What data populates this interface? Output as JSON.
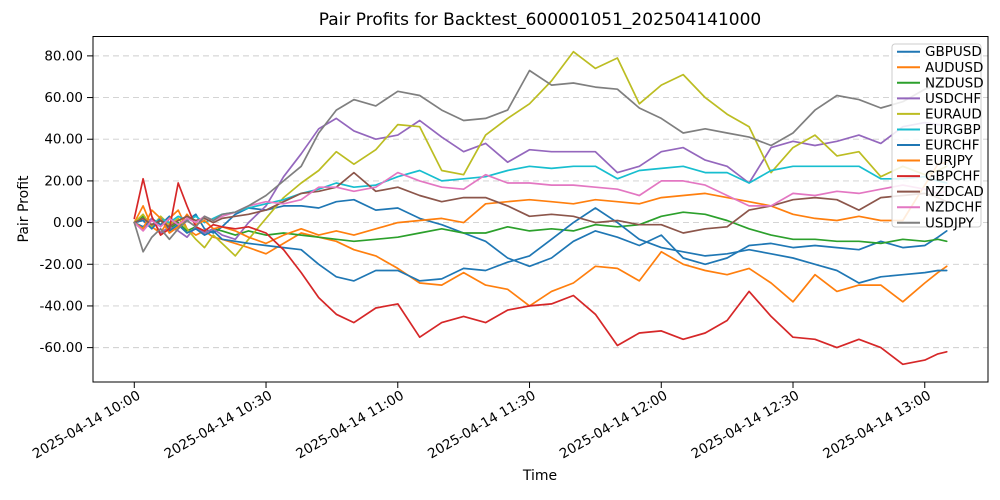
{
  "chart_data": {
    "type": "line",
    "title": "Pair Profits for Backtest_600001051_202504141000",
    "xlabel": "Time",
    "ylabel": "Pair Profit",
    "grid": "horizontal-dashed",
    "legend_position": "upper right",
    "x_unit": "minutes after 2025-04-14 10:00",
    "xlim_minutes": [
      -9.4,
      194.4
    ],
    "ylim": [
      -76.5,
      89.3
    ],
    "x": [
      0,
      2,
      4,
      6,
      8,
      10,
      12,
      14,
      16,
      18,
      20,
      23,
      26,
      30,
      34,
      38,
      42,
      46,
      50,
      55,
      60,
      65,
      70,
      75,
      80,
      85,
      90,
      95,
      100,
      105,
      110,
      115,
      120,
      125,
      130,
      135,
      140,
      145,
      150,
      155,
      160,
      165,
      170,
      175,
      180,
      183,
      185
    ],
    "x_ticks": [
      {
        "t": 0,
        "label": "2025-04-14 10:00"
      },
      {
        "t": 30,
        "label": "2025-04-14 10:30"
      },
      {
        "t": 60,
        "label": "2025-04-14 11:00"
      },
      {
        "t": 90,
        "label": "2025-04-14 11:30"
      },
      {
        "t": 120,
        "label": "2025-04-14 12:00"
      },
      {
        "t": 150,
        "label": "2025-04-14 12:30"
      },
      {
        "t": 180,
        "label": "2025-04-14 13:00"
      }
    ],
    "y_ticks": [
      {
        "v": 80,
        "label": "80.00"
      },
      {
        "v": 60,
        "label": "60.00"
      },
      {
        "v": 40,
        "label": "40.00"
      },
      {
        "v": 20,
        "label": "20.00"
      },
      {
        "v": 0,
        "label": "0.00"
      },
      {
        "v": -20,
        "label": "-20.00"
      },
      {
        "v": -40,
        "label": "-40.00"
      },
      {
        "v": -60,
        "label": "-60.00"
      }
    ],
    "series": [
      {
        "name": "GBPUSD",
        "color": "#1f77b4",
        "values": [
          0,
          -2,
          2,
          -1,
          3,
          -2,
          1,
          4,
          -3,
          -5,
          -2,
          4,
          7,
          6,
          8,
          8,
          7,
          10,
          11,
          6,
          7,
          2,
          -1,
          -5,
          -9,
          -17,
          -21,
          -17,
          -9,
          -4,
          -7,
          -11,
          -6,
          -17,
          -20,
          -17,
          -11,
          -10,
          -12,
          -11,
          -12,
          -13,
          -9,
          -12,
          -11,
          -7,
          -4
        ]
      },
      {
        "name": "AUDUSD",
        "color": "#ff7f0e",
        "values": [
          0,
          8,
          -2,
          -5,
          2,
          6,
          -3,
          -6,
          -4,
          -7,
          -8,
          -10,
          -12,
          -15,
          -10,
          -5,
          -7,
          -9,
          -13,
          -16,
          -22,
          -29,
          -30,
          -24,
          -30,
          -32,
          -40,
          -33,
          -29,
          -21,
          -22,
          -28,
          -14,
          -20,
          -23,
          -25,
          -22,
          -29,
          -38,
          -25,
          -33,
          -30,
          -30,
          -38,
          -29,
          -24,
          -21
        ]
      },
      {
        "name": "NZDUSD",
        "color": "#2ca02c",
        "values": [
          0,
          3,
          -2,
          1,
          -3,
          0,
          -4,
          -2,
          -5,
          -3,
          -4,
          -6,
          -4,
          -6,
          -5,
          -6,
          -7,
          -8,
          -9,
          -8,
          -7,
          -5,
          -3,
          -5,
          -5,
          -2,
          -4,
          -3,
          -4,
          -1,
          -2,
          -1,
          3,
          5,
          4,
          1,
          -3,
          -6,
          -8,
          -8,
          -9,
          -9,
          -10,
          -8,
          -9,
          -8,
          -9
        ]
      },
      {
        "name": "USDCHF",
        "color": "#9467bd",
        "values": [
          0,
          -3,
          2,
          -5,
          -2,
          -4,
          -7,
          -2,
          -5,
          -3,
          -6,
          -8,
          0,
          8,
          22,
          33,
          45,
          50,
          44,
          40,
          42,
          49,
          41,
          34,
          38,
          29,
          35,
          34,
          34,
          34,
          24,
          27,
          34,
          36,
          30,
          27,
          19,
          36,
          39,
          37,
          39,
          42,
          38,
          46,
          48,
          47,
          47
        ]
      },
      {
        "name": "EURAUD",
        "color": "#bcbd22",
        "values": [
          0,
          4,
          -2,
          3,
          -1,
          2,
          -3,
          -8,
          -12,
          -6,
          -10,
          -16,
          -8,
          2,
          12,
          19,
          25,
          34,
          28,
          35,
          47,
          46,
          25,
          23,
          42,
          50,
          57,
          68,
          82,
          74,
          79,
          57,
          66,
          71,
          60,
          52,
          46,
          24,
          36,
          42,
          32,
          34,
          22,
          27,
          23,
          25,
          27
        ]
      },
      {
        "name": "EURGBP",
        "color": "#17becf",
        "values": [
          0,
          2,
          -1,
          2,
          0,
          3,
          1,
          3,
          0,
          2,
          4,
          5,
          7,
          9,
          11,
          14,
          16,
          19,
          17,
          18,
          22,
          25,
          20,
          21,
          22,
          25,
          27,
          26,
          27,
          27,
          21,
          25,
          26,
          27,
          24,
          24,
          19,
          25,
          27,
          27,
          27,
          27,
          21,
          21,
          22,
          20,
          19
        ]
      },
      {
        "name": "EURCHF",
        "color": "#1f77b4",
        "values": [
          0,
          1,
          -3,
          2,
          -4,
          -1,
          -5,
          -3,
          -6,
          -4,
          -8,
          -9,
          -10,
          -11,
          -12,
          -13,
          -20,
          -26,
          -28,
          -23,
          -23,
          -28,
          -27,
          -22,
          -23,
          -19,
          -16,
          -8,
          0,
          7,
          0,
          -8,
          -12,
          -14,
          -16,
          -15,
          -13,
          -15,
          -17,
          -20,
          -23,
          -29,
          -26,
          -25,
          -24,
          -23,
          -23
        ]
      },
      {
        "name": "EURJPY",
        "color": "#ff7f0e",
        "values": [
          0,
          -3,
          6,
          2,
          -5,
          -2,
          4,
          -1,
          1,
          -3,
          -2,
          -4,
          -7,
          -10,
          -6,
          -3,
          -6,
          -4,
          -6,
          -3,
          0,
          1,
          2,
          0,
          9,
          10,
          11,
          10,
          9,
          11,
          10,
          9,
          12,
          13,
          14,
          12,
          10,
          8,
          4,
          2,
          1,
          3,
          1,
          1,
          18,
          28,
          29
        ]
      },
      {
        "name": "GBPCHF",
        "color": "#d62728",
        "values": [
          2,
          21,
          3,
          -6,
          -3,
          19,
          8,
          -2,
          -4,
          -1,
          -2,
          -3,
          -2,
          -5,
          -13,
          -24,
          -36,
          -44,
          -48,
          -41,
          -39,
          -55,
          -48,
          -45,
          -48,
          -42,
          -40,
          -39,
          -35,
          -44,
          -59,
          -53,
          -52,
          -56,
          -53,
          -47,
          -33,
          -45,
          -55,
          -56,
          -60,
          -56,
          -60,
          -68,
          -66,
          -63,
          -62
        ]
      },
      {
        "name": "NZDCAD",
        "color": "#8c564b",
        "values": [
          0,
          2,
          -1,
          1,
          -2,
          1,
          3,
          1,
          2,
          0,
          2,
          3,
          4,
          6,
          10,
          14,
          15,
          17,
          24,
          15,
          17,
          13,
          10,
          12,
          12,
          8,
          3,
          4,
          3,
          0,
          1,
          -1,
          -1,
          -5,
          -3,
          -2,
          6,
          8,
          11,
          12,
          11,
          6,
          12,
          13,
          14,
          12,
          10
        ]
      },
      {
        "name": "NZDCHF",
        "color": "#e377c2",
        "values": [
          0,
          -4,
          1,
          -2,
          2,
          -1,
          2,
          0,
          3,
          1,
          3,
          5,
          8,
          10,
          9,
          11,
          17,
          17,
          15,
          17,
          24,
          20,
          17,
          16,
          23,
          19,
          19,
          18,
          18,
          17,
          16,
          13,
          20,
          20,
          18,
          13,
          8,
          8,
          14,
          13,
          15,
          14,
          16,
          18,
          16,
          14,
          15
        ]
      },
      {
        "name": "USDJPY",
        "color": "#7f7f7f",
        "values": [
          0,
          -14,
          -7,
          -3,
          -8,
          -3,
          1,
          -2,
          3,
          1,
          4,
          5,
          8,
          13,
          20,
          27,
          43,
          54,
          59,
          56,
          63,
          61,
          54,
          49,
          50,
          54,
          73,
          66,
          67,
          65,
          64,
          55,
          50,
          43,
          45,
          43,
          41,
          37,
          43,
          54,
          61,
          59,
          55,
          58,
          64,
          66,
          65
        ]
      }
    ]
  },
  "style_colors": {
    "background": "#ffffff",
    "grid": "#bdbdbd",
    "axis_spine": "#000000",
    "legend_border": "#cccccc",
    "legend_background": "#ffffff",
    "text": "#000000"
  }
}
